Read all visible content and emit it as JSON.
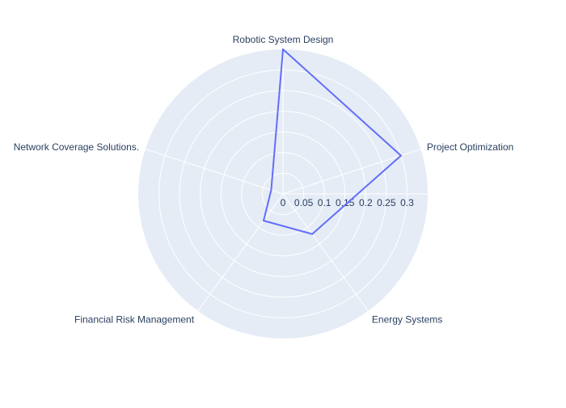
{
  "chart_data": {
    "type": "radar",
    "categories": [
      "Robotic System Design",
      "Project Optimization",
      "Energy Systems",
      "Financial Risk Management",
      "Network Coverage Solutions."
    ],
    "values": [
      0.35,
      0.3,
      0.12,
      0.08,
      0.03
    ],
    "radial_range": [
      0,
      0.35
    ],
    "radial_ticks": [
      0,
      0.05,
      0.1,
      0.15,
      0.2,
      0.25,
      0.3
    ],
    "radial_tick_labels": [
      "0",
      "0.05",
      "0.1",
      "0.15",
      "0.2",
      "0.25",
      "0.3"
    ],
    "grid": true,
    "background_color": "#e5ecf6",
    "grid_color": "#ffffff",
    "line_color": "#636efa",
    "label_color": "#2a3f5f"
  }
}
